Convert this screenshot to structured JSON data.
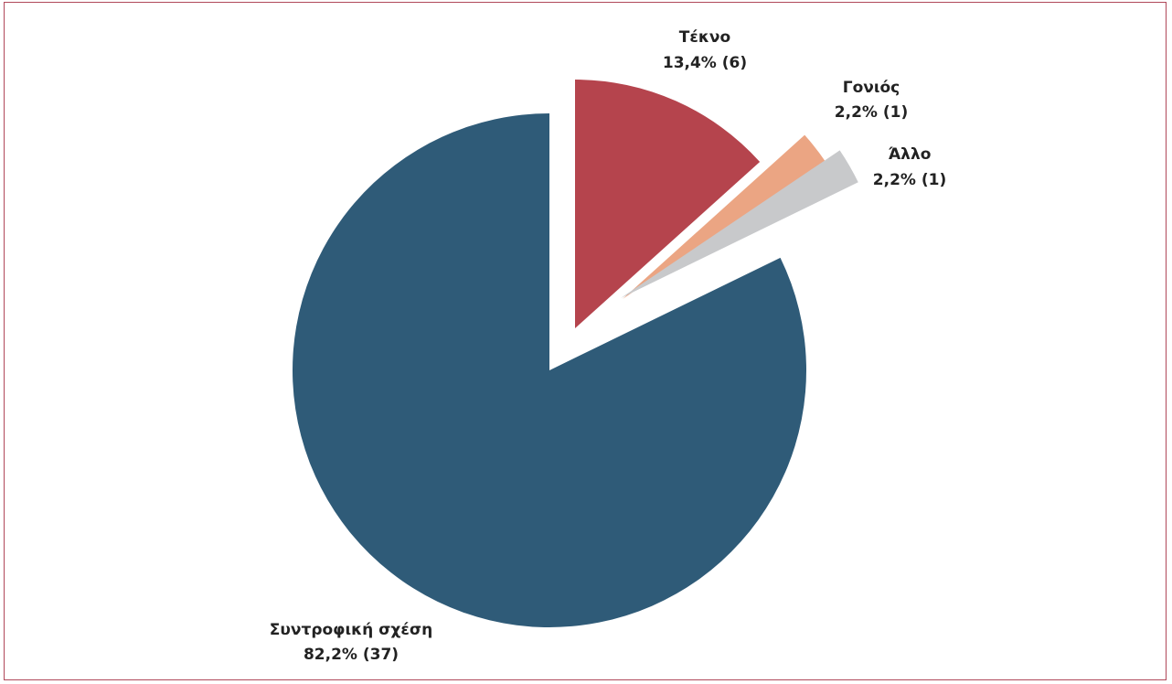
{
  "chart_data": {
    "type": "pie",
    "slices": [
      {
        "name": "Συντροφική σχέση",
        "label": "82,2% (37)",
        "value": 37,
        "percent": 82.2,
        "color": "#2f5b78"
      },
      {
        "name": "Τέκνο",
        "label": "13,4% (6)",
        "value": 6,
        "percent": 13.4,
        "color": "#b5444d"
      },
      {
        "name": "Γονιός",
        "label": "2,2% (1)",
        "value": 1,
        "percent": 2.2,
        "color": "#eba583"
      },
      {
        "name": "Άλλο",
        "label": "2,2% (1)",
        "value": 1,
        "percent": 2.2,
        "color": "#c8c9cb"
      }
    ],
    "exploded": [
      "Τέκνο",
      "Γονιός",
      "Άλλο"
    ],
    "start_angle": "12 o'clock, clockwise"
  }
}
